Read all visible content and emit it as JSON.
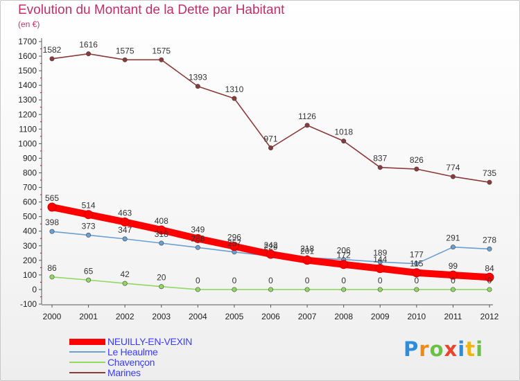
{
  "title": "Evolution du Montant de la Dette par Habitant",
  "subtitle": "(en €)",
  "logo": {
    "p": "P",
    "r": "r",
    "o": "o",
    "x": "x",
    "i1": "i",
    "t": "t",
    "i2": "i"
  },
  "chart_data": {
    "type": "line",
    "x": [
      "2000",
      "2001",
      "2002",
      "2003",
      "2004",
      "2005",
      "2006",
      "2007",
      "2008",
      "2009",
      "2010",
      "2011",
      "2012"
    ],
    "ylim": [
      -100,
      1700
    ],
    "yticks": [
      -100,
      0,
      100,
      200,
      300,
      400,
      500,
      600,
      700,
      800,
      900,
      1000,
      1100,
      1200,
      1300,
      1400,
      1500,
      1600,
      1700
    ],
    "grid": false,
    "legend_position": "bottom-left",
    "series": [
      {
        "name": "NEUILLY-EN-VEXIN",
        "color": "#ff0000",
        "values": [
          565,
          514,
          463,
          408,
          349,
          296,
          242,
          201,
          172,
          144,
          115,
          99,
          84
        ]
      },
      {
        "name": "Le Heaulme",
        "color": "#6a9fd0",
        "values": [
          398,
          373,
          347,
          318,
          288,
          257,
          229,
          218,
          206,
          189,
          177,
          291,
          278
        ]
      },
      {
        "name": "Chavençon",
        "color": "#90d860",
        "values": [
          86,
          65,
          42,
          20,
          0,
          0,
          0,
          0,
          0,
          0,
          0,
          0,
          0
        ]
      },
      {
        "name": "Marines",
        "color": "#8a3a3a",
        "values": [
          1582,
          1616,
          1575,
          1575,
          1393,
          1310,
          971,
          1126,
          1018,
          837,
          826,
          774,
          735
        ]
      }
    ]
  }
}
